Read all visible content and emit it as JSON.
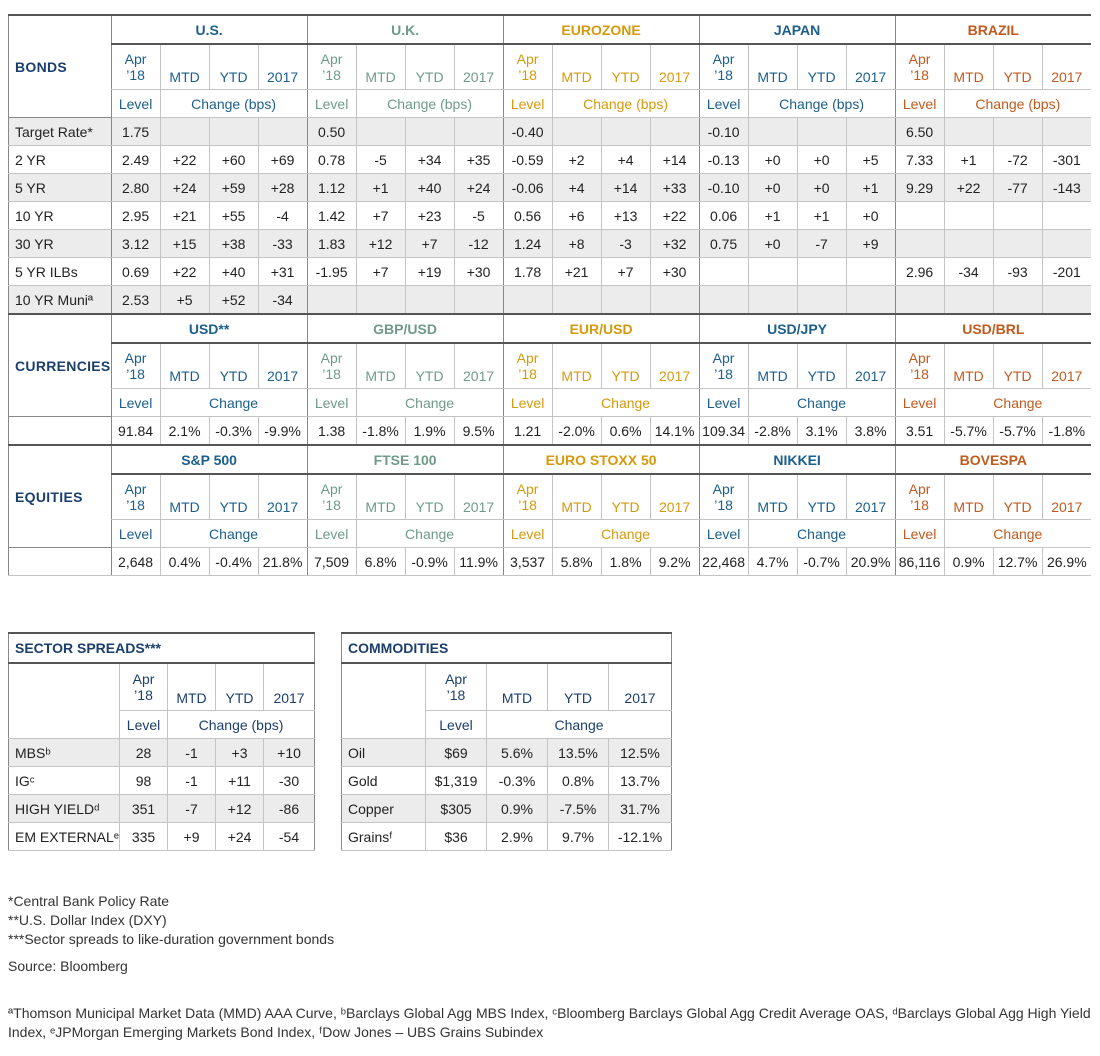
{
  "markets": [
    {
      "name": "U.S.",
      "color": "#1b5f8d"
    },
    {
      "name": "U.K.",
      "color": "#6f9a8a"
    },
    {
      "name": "EUROZONE",
      "color": "#d49a0c"
    },
    {
      "name": "JAPAN",
      "color": "#1b5f8d"
    },
    {
      "name": "BRAZIL",
      "color": "#c05a1e"
    }
  ],
  "headers": {
    "apr_line1": "Apr",
    "apr_line2": "’18",
    "mtd": "MTD",
    "ytd": "YTD",
    "y2017": "2017",
    "level": "Level",
    "change_bps": "Change (bps)",
    "change": "Change"
  },
  "bonds": {
    "label": "BONDS",
    "rows": [
      {
        "label": "Target Rate*",
        "cells": [
          "1.75",
          "",
          "",
          "",
          "0.50",
          "",
          "",
          "",
          "-0.40",
          "",
          "",
          "",
          "-0.10",
          "",
          "",
          "",
          "6.50",
          "",
          "",
          ""
        ]
      },
      {
        "label": "2 YR",
        "cells": [
          "2.49",
          "+22",
          "+60",
          "+69",
          "0.78",
          "-5",
          "+34",
          "+35",
          "-0.59",
          "+2",
          "+4",
          "+14",
          "-0.13",
          "+0",
          "+0",
          "+5",
          "7.33",
          "+1",
          "-72",
          "-301"
        ]
      },
      {
        "label": "5 YR",
        "cells": [
          "2.80",
          "+24",
          "+59",
          "+28",
          "1.12",
          "+1",
          "+40",
          "+24",
          "-0.06",
          "+4",
          "+14",
          "+33",
          "-0.10",
          "+0",
          "+0",
          "+1",
          "9.29",
          "+22",
          "-77",
          "-143"
        ]
      },
      {
        "label": "10 YR",
        "cells": [
          "2.95",
          "+21",
          "+55",
          "-4",
          "1.42",
          "+7",
          "+23",
          "-5",
          "0.56",
          "+6",
          "+13",
          "+22",
          "0.06",
          "+1",
          "+1",
          "+0",
          "",
          "",
          "",
          ""
        ]
      },
      {
        "label": "30 YR",
        "cells": [
          "3.12",
          "+15",
          "+38",
          "-33",
          "1.83",
          "+12",
          "+7",
          "-12",
          "1.24",
          "+8",
          "-3",
          "+32",
          "0.75",
          "+0",
          "-7",
          "+9",
          "",
          "",
          "",
          ""
        ]
      },
      {
        "label": "5 YR ILBs",
        "cells": [
          "0.69",
          "+22",
          "+40",
          "+31",
          "-1.95",
          "+7",
          "+19",
          "+30",
          "1.78",
          "+21",
          "+7",
          "+30",
          "",
          "",
          "",
          "",
          "2.96",
          "-34",
          "-93",
          "-201"
        ]
      },
      {
        "label": "10 YR Muniª",
        "cells": [
          "2.53",
          "+5",
          "+52",
          "-34",
          "",
          "",
          "",
          "",
          "",
          "",
          "",
          "",
          "",
          "",
          "",
          "",
          "",
          "",
          "",
          ""
        ]
      }
    ]
  },
  "currencies": {
    "label": "CURRENCIES",
    "names": [
      "USD**",
      "GBP/USD",
      "EUR/USD",
      "USD/JPY",
      "USD/BRL"
    ],
    "cells": [
      "91.84",
      "2.1%",
      "-0.3%",
      "-9.9%",
      "1.38",
      "-1.8%",
      "1.9%",
      "9.5%",
      "1.21",
      "-2.0%",
      "0.6%",
      "14.1%",
      "109.34",
      "-2.8%",
      "3.1%",
      "3.8%",
      "3.51",
      "-5.7%",
      "-5.7%",
      "-1.8%"
    ]
  },
  "equities": {
    "label": "EQUITIES",
    "names": [
      "S&P 500",
      "FTSE 100",
      "EURO STOXX 50",
      "NIKKEI",
      "BOVESPA"
    ],
    "cells": [
      "2,648",
      "0.4%",
      "-0.4%",
      "21.8%",
      "7,509",
      "6.8%",
      "-0.9%",
      "11.9%",
      "3,537",
      "5.8%",
      "1.8%",
      "9.2%",
      "22,468",
      "4.7%",
      "-0.7%",
      "20.9%",
      "86,116",
      "0.9%",
      "12.7%",
      "26.9%"
    ]
  },
  "sector_spreads": {
    "title": "SECTOR SPREADS***",
    "rows": [
      {
        "label": "MBSᵇ",
        "cells": [
          "28",
          "-1",
          "+3",
          "+10"
        ]
      },
      {
        "label": "IGᶜ",
        "cells": [
          "98",
          "-1",
          "+11",
          "-30"
        ]
      },
      {
        "label": "HIGH YIELDᵈ",
        "cells": [
          "351",
          "-7",
          "+12",
          "-86"
        ]
      },
      {
        "label": "EM EXTERNALᵉ",
        "cells": [
          "335",
          "+9",
          "+24",
          "-54"
        ]
      }
    ]
  },
  "commodities": {
    "title": "COMMODITIES",
    "rows": [
      {
        "label": "Oil",
        "cells": [
          "$69",
          "5.6%",
          "13.5%",
          "12.5%"
        ]
      },
      {
        "label": "Gold",
        "cells": [
          "$1,319",
          "-0.3%",
          "0.8%",
          "13.7%"
        ]
      },
      {
        "label": "Copper",
        "cells": [
          "$305",
          "0.9%",
          "-7.5%",
          "31.7%"
        ]
      },
      {
        "label": "Grainsᶠ",
        "cells": [
          "$36",
          "2.9%",
          "9.7%",
          "-12.1%"
        ]
      }
    ]
  },
  "footnotes": [
    "*Central Bank Policy Rate",
    "**U.S. Dollar Index (DXY)",
    "***Sector spreads to like-duration government bonds"
  ],
  "source": "Source: Bloomberg",
  "notes": "ªThomson Municipal Market Data (MMD) AAA Curve, ᵇBarclays Global Agg MBS Index, ᶜBloomberg Barclays Global Agg Credit Average OAS, ᵈBarclays Global Agg High Yield Index, ᵉJPMorgan Emerging Markets Bond Index, ᶠDow Jones – UBS Grains Subindex"
}
